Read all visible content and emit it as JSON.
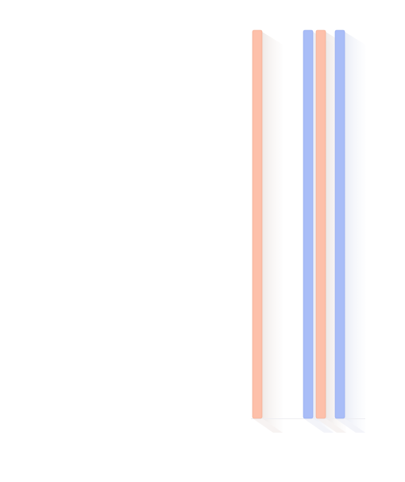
{
  "chart_data": {
    "type": "bar",
    "style": "3d-vertical-bars",
    "categories": [
      "",
      "",
      "",
      ""
    ],
    "series": [
      {
        "values": [
          100,
          100,
          100,
          100
        ]
      }
    ],
    "bar_colors": [
      "#fdc0aa",
      "#a9bdf7",
      "#fdc0aa",
      "#a9bdf7"
    ],
    "bar_label_colors": [
      "#c0553a",
      "#3050c8",
      "#c0553a",
      "#3050c8"
    ],
    "data_labels": [
      "",
      "",
      "",
      ""
    ],
    "tick_labels": [
      "",
      "",
      ""
    ],
    "ylim": [
      0,
      100
    ],
    "grid": false,
    "legend": "none"
  }
}
